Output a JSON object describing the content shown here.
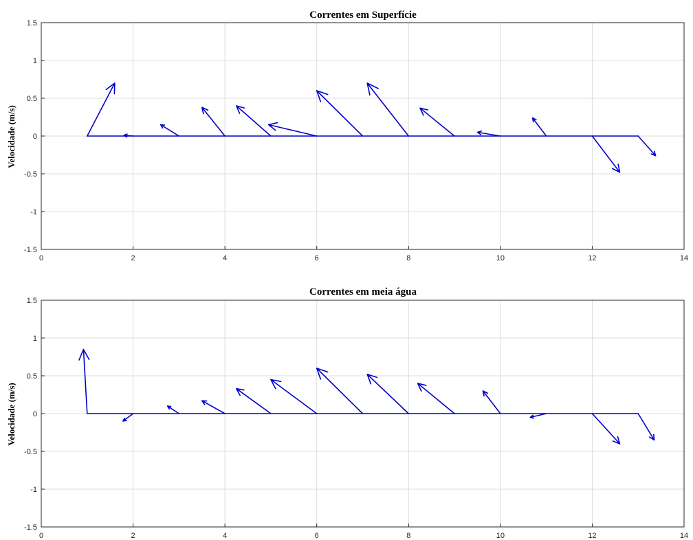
{
  "chart_data": [
    {
      "type": "quiver",
      "title": "Correntes em Superfície",
      "xlabel": "",
      "ylabel": "Velocidade (m/s)",
      "xlim": [
        0,
        14
      ],
      "ylim": [
        -1.5,
        1.5
      ],
      "xticks": [
        "0",
        "2",
        "4",
        "6",
        "8",
        "10",
        "12",
        "14"
      ],
      "yticks": [
        "1.5",
        "1",
        "0.5",
        "0",
        "-0.5",
        "-1",
        "-1.5"
      ],
      "grid": true,
      "color": "#0000cc",
      "vectors": [
        {
          "x": 1,
          "y": 0,
          "u": 0.6,
          "v": 0.7
        },
        {
          "x": 2,
          "y": 0,
          "u": -0.2,
          "v": 0.01
        },
        {
          "x": 3,
          "y": 0,
          "u": -0.4,
          "v": 0.15
        },
        {
          "x": 4,
          "y": 0,
          "u": -0.5,
          "v": 0.38
        },
        {
          "x": 5,
          "y": 0,
          "u": -0.75,
          "v": 0.4
        },
        {
          "x": 6,
          "y": 0,
          "u": -1.05,
          "v": 0.15
        },
        {
          "x": 7,
          "y": 0,
          "u": -1.0,
          "v": 0.6
        },
        {
          "x": 8,
          "y": 0,
          "u": -0.9,
          "v": 0.7
        },
        {
          "x": 9,
          "y": 0,
          "u": -0.75,
          "v": 0.37
        },
        {
          "x": 10,
          "y": 0,
          "u": -0.5,
          "v": 0.05
        },
        {
          "x": 11,
          "y": 0,
          "u": -0.3,
          "v": 0.24
        },
        {
          "x": 12,
          "y": 0,
          "u": 0.6,
          "v": -0.48
        },
        {
          "x": 13,
          "y": 0,
          "u": 0.38,
          "v": -0.26
        }
      ]
    },
    {
      "type": "quiver",
      "title": "Correntes em meia água",
      "xlabel": "",
      "ylabel": "Velocidade (m/s)",
      "xlim": [
        0,
        14
      ],
      "ylim": [
        -1.5,
        1.5
      ],
      "xticks": [
        "0",
        "2",
        "4",
        "6",
        "8",
        "10",
        "12",
        "14"
      ],
      "yticks": [
        "1.5",
        "1",
        "0.5",
        "0",
        "-0.5",
        "-1",
        "-1.5"
      ],
      "grid": true,
      "color": "#0000cc",
      "vectors": [
        {
          "x": 1,
          "y": 0,
          "u": -0.08,
          "v": 0.85
        },
        {
          "x": 2,
          "y": 0,
          "u": -0.22,
          "v": -0.1
        },
        {
          "x": 3,
          "y": 0,
          "u": -0.25,
          "v": 0.1
        },
        {
          "x": 4,
          "y": 0,
          "u": -0.5,
          "v": 0.17
        },
        {
          "x": 5,
          "y": 0,
          "u": -0.75,
          "v": 0.33
        },
        {
          "x": 6,
          "y": 0,
          "u": -1.0,
          "v": 0.45
        },
        {
          "x": 7,
          "y": 0,
          "u": -1.0,
          "v": 0.6
        },
        {
          "x": 8,
          "y": 0,
          "u": -0.9,
          "v": 0.52
        },
        {
          "x": 9,
          "y": 0,
          "u": -0.8,
          "v": 0.4
        },
        {
          "x": 10,
          "y": 0,
          "u": -0.38,
          "v": 0.3
        },
        {
          "x": 11,
          "y": 0,
          "u": -0.35,
          "v": -0.05
        },
        {
          "x": 12,
          "y": 0,
          "u": 0.6,
          "v": -0.4
        },
        {
          "x": 13,
          "y": 0,
          "u": 0.35,
          "v": -0.35
        }
      ]
    }
  ]
}
